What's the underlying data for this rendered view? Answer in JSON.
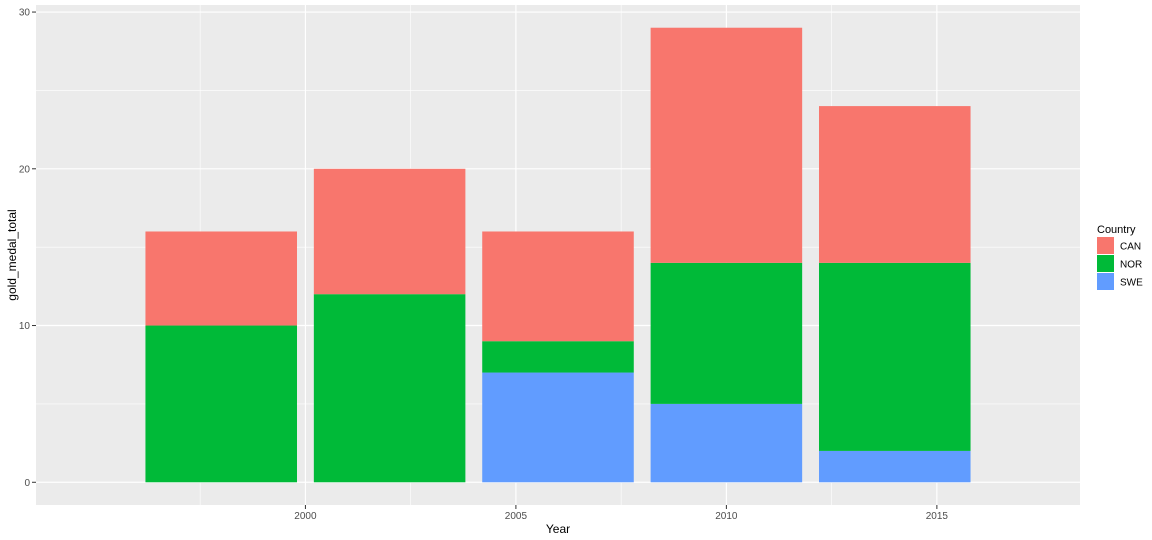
{
  "chart_data": {
    "type": "bar",
    "stacked": true,
    "xlabel": "Year",
    "ylabel": "gold_medal_total",
    "x": [
      1998,
      2002,
      2006,
      2010,
      2014
    ],
    "series": [
      {
        "name": "SWE",
        "color": "#619CFF",
        "values": [
          0,
          0,
          7,
          5,
          2
        ]
      },
      {
        "name": "NOR",
        "color": "#00BA38",
        "values": [
          10,
          12,
          2,
          9,
          12
        ]
      },
      {
        "name": "CAN",
        "color": "#F8766D",
        "values": [
          6,
          8,
          7,
          15,
          10
        ]
      }
    ],
    "xlim": [
      1993.6,
      2018.4
    ],
    "ylim": [
      -1.45,
      30.45
    ],
    "x_ticks": [
      2000,
      2005,
      2010,
      2015
    ],
    "x_tick_labels": [
      "2000",
      "2005",
      "2010",
      "2015"
    ],
    "y_ticks": [
      0,
      10,
      20,
      30
    ],
    "y_tick_labels": [
      "0",
      "10",
      "20",
      "30"
    ],
    "bar_width_years": 3.6,
    "grid": true,
    "background": "#EBEBEB",
    "legend": {
      "title": "Country",
      "placement": "right",
      "entries": [
        {
          "label": "CAN",
          "color": "#F8766D"
        },
        {
          "label": "NOR",
          "color": "#00BA38"
        },
        {
          "label": "SWE",
          "color": "#619CFF"
        }
      ]
    }
  }
}
